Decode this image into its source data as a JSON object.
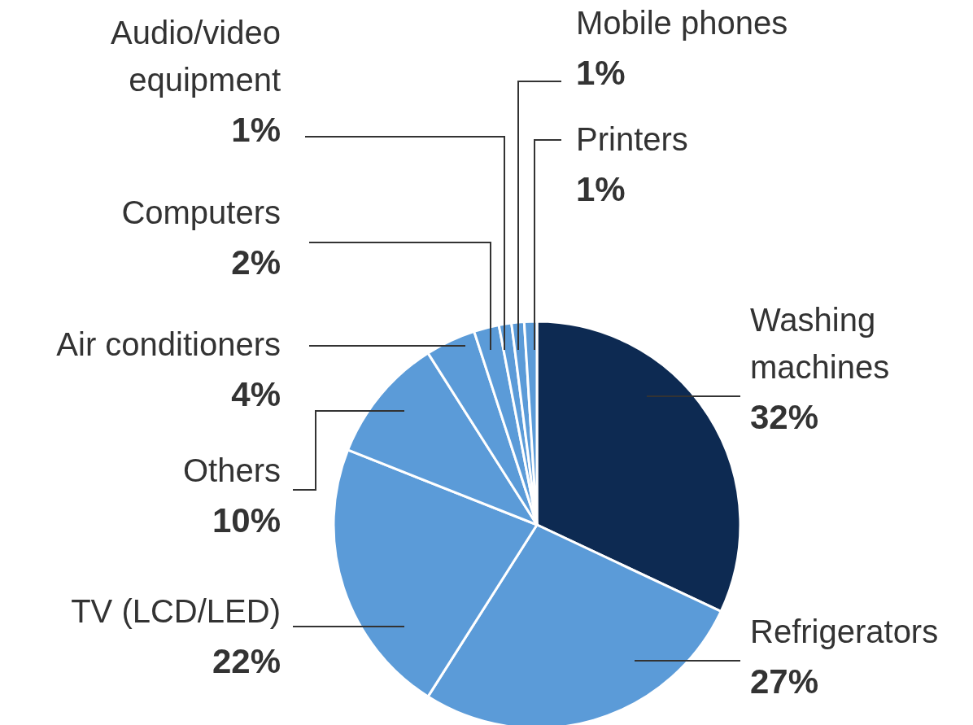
{
  "chart_data": {
    "type": "pie",
    "categories": [
      "Washing machines",
      "Refrigerators",
      "TV (LCD/LED)",
      "Others",
      "Air conditioners",
      "Computers",
      "Audio/video equipment",
      "Mobile phones",
      "Printers"
    ],
    "values": [
      32,
      27,
      22,
      10,
      4,
      2,
      1,
      1,
      1
    ],
    "value_labels": [
      "32%",
      "27%",
      "22%",
      "10%",
      "4%",
      "2%",
      "1%",
      "1%",
      "1%"
    ],
    "colors": [
      "#0d2a52",
      "#5b9bd8",
      "#5b9bd8",
      "#5b9bd8",
      "#5b9bd8",
      "#5b9bd8",
      "#5b9bd8",
      "#5b9bd8",
      "#5b9bd8"
    ]
  }
}
